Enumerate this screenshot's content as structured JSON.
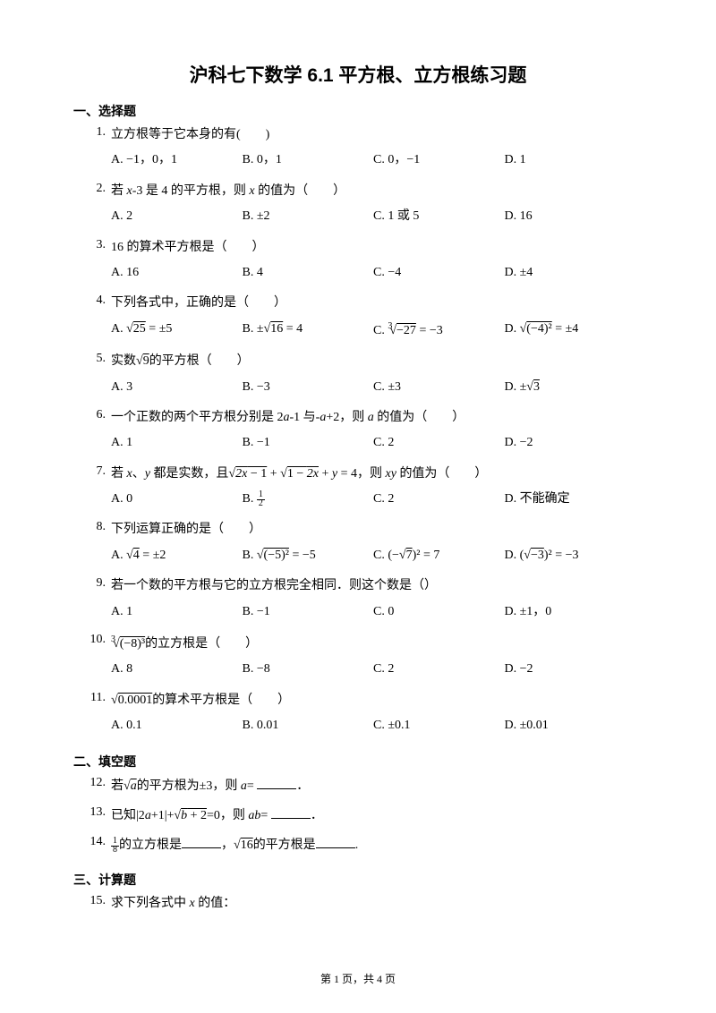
{
  "title": "沪科七下数学 6.1 平方根、立方根练习题",
  "sec1": "一、选择题",
  "sec2": "二、填空题",
  "sec3": "三、计算题",
  "footer": "第 1 页，共 4 页",
  "q1": {
    "n": "1.",
    "s": "立方根等于它本身的有(　　)",
    "a": "A. −1，0，1",
    "b": "B. 0，1",
    "c": "C. 0，−1",
    "d": "D. 1"
  },
  "q2": {
    "n": "2.",
    "s_1": "若 ",
    "s_x": "x",
    "s_2": "-3 是 4 的平方根，则 ",
    "s_x2": "x",
    "s_3": " 的值为（　　）",
    "a": "A. 2",
    "b": "B. ±2",
    "c": "C. 1 或 5",
    "d": "D. 16"
  },
  "q3": {
    "n": "3.",
    "s": "16 的算术平方根是（　　）",
    "a": "A. 16",
    "b": "B. 4",
    "c": "C. −4",
    "d": "D. ±4"
  },
  "q4": {
    "n": "4.",
    "s": "下列各式中，正确的是（　　）",
    "a1": "A. √",
    "a2": "25",
    "a3": " = ±5",
    "b1": "B. ±√",
    "b2": "16",
    "b3": " = 4",
    "c1": "C. ",
    "c2": "−27",
    "c3": " = −3",
    "d1": "D. √",
    "d2": "(−4)²",
    "d3": " = ±4"
  },
  "q5": {
    "n": "5.",
    "s1": "实数√",
    "s2": "9",
    "s3": "的平方根（　　）",
    "a": "A. 3",
    "b": "B. −3",
    "c": "C. ±3",
    "d1": "D. ±√",
    "d2": "3"
  },
  "q6": {
    "n": "6.",
    "s1": "一个正数的两个平方根分别是 2",
    "sa": "a",
    "s2": "-1 与-",
    "sa2": "a",
    "s3": "+2，则 ",
    "sa3": "a",
    "s4": " 的值为（　　）",
    "a": "A. 1",
    "b": "B. −1",
    "c": "C. 2",
    "d": "D. −2"
  },
  "q7": {
    "n": "7.",
    "s1": "若 ",
    "sx": "x",
    "s2": "、",
    "sy": "y",
    "s3": " 都是实数，且√",
    "s4": "2x − 1",
    "s5": " + √",
    "s6": "1 − 2x",
    "s7": " + ",
    "sy2": "y",
    "s8": " = 4，则 ",
    "sxy": "xy",
    "s9": " 的值为（　　）",
    "a": "A. 0",
    "b": "B. ",
    "c": "C. 2",
    "d": "D. 不能确定",
    "bn": "1",
    "bd": "2"
  },
  "q8": {
    "n": "8.",
    "s": "下列运算正确的是（　　）",
    "a1": "A. √",
    "a2": "4",
    "a3": " = ±2",
    "b1": "B. √",
    "b2": "(−5)²",
    "b3": " = −5",
    "c1": "C. (−√",
    "c2": "7",
    "c3": ")² = 7",
    "d1": "D. (√",
    "d2": "−3",
    "d3": ")² = −3"
  },
  "q9": {
    "n": "9.",
    "s": "若一个数的平方根与它的立方根完全相同．则这个数是（）",
    "a": "A. 1",
    "b": "B. −1",
    "c": "C. 0",
    "d": "D. ±1，0"
  },
  "q10": {
    "n": "10.",
    "s2": "(−8)³",
    "s3": "的立方根是（　　）",
    "a": "A. 8",
    "b": "B. −8",
    "c": "C. 2",
    "d": "D. −2"
  },
  "q11": {
    "n": "11.",
    "s1": "√",
    "s2": "0.0001",
    "s3": "的算术平方根是（　　）",
    "a": "A. 0.1",
    "b": "B. 0.01",
    "c": "C. ±0.1",
    "d": "D. ±0.01"
  },
  "q12": {
    "n": "12.",
    "s1": "若√",
    "s2": "a",
    "s3": "的平方根为±3，则 ",
    "sa": "a",
    "s4": "= ",
    "s5": "．"
  },
  "q13": {
    "n": "13.",
    "s1": "已知|2",
    "sa": "a",
    "s2": "+1|+√",
    "s3": "b + 2",
    "s4": "=0，则 ",
    "sab": "ab",
    "s5": "= ",
    "s6": "．"
  },
  "q14": {
    "n": "14.",
    "n1": "1",
    "d1": "8",
    "s1": "的立方根是",
    "s2": "，√",
    "s3": "16",
    "s4": "的平方根是",
    "s5": "."
  },
  "q15": {
    "n": "15.",
    "s1": "求下列各式中 ",
    "sx": "x",
    "s2": " 的值："
  }
}
